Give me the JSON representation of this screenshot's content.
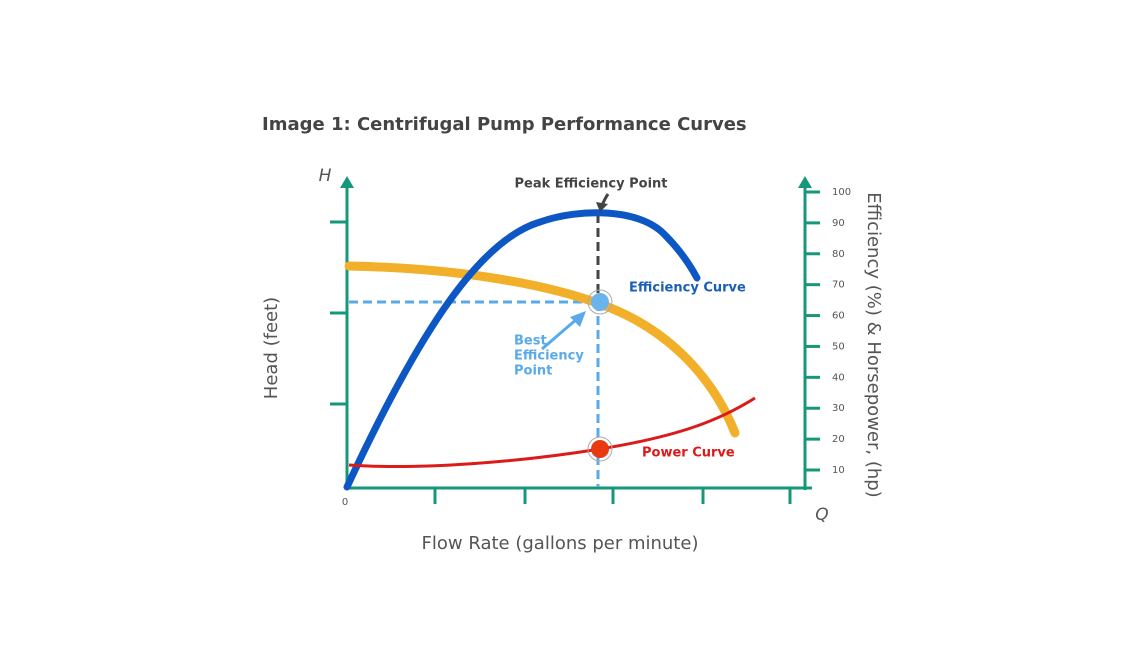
{
  "title": "Image 1: Centrifugal Pump Performance Curves",
  "axes": {
    "y_symbol": "H",
    "y_label": "Head (feet)",
    "x_label": "Flow Rate (gallons per minute)",
    "x_symbol": "Q",
    "origin": "0",
    "y2_label": "Efficiency (%) & Horsepower, (hp)",
    "y2_ticks": [
      10,
      20,
      30,
      40,
      50,
      60,
      70,
      80,
      90,
      100
    ]
  },
  "annotations": {
    "peak": "Peak Efficiency Point",
    "efficiency_curve": "Efficiency Curve",
    "best_point": [
      "Best",
      "Efficiency",
      "Point"
    ],
    "power_curve": "Power Curve"
  }
}
